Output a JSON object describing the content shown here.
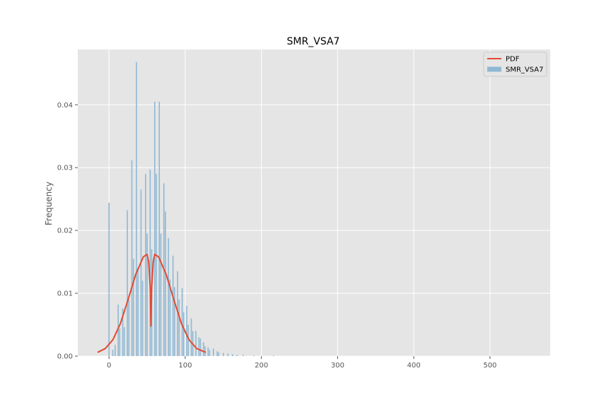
{
  "chart_data": {
    "type": "bar",
    "title": "SMR_VSA7",
    "xlabel": "",
    "ylabel": "Frequency",
    "xlim": [
      -41,
      579
    ],
    "ylim": [
      0,
      0.0488
    ],
    "xticks": [
      0,
      100,
      200,
      300,
      400,
      500
    ],
    "xtick_labels": [
      "0",
      "100",
      "200",
      "300",
      "400",
      "500"
    ],
    "yticks": [
      0.0,
      0.01,
      0.02,
      0.03,
      0.04
    ],
    "ytick_labels": [
      "0.00",
      "0.01",
      "0.02",
      "0.03",
      "0.04"
    ],
    "grid": true,
    "legend_position": "top-right",
    "colors": {
      "background": "#e5e5e5",
      "grid": "#ffffff",
      "histogram": "#8eb8d3",
      "pdf": "#e24a33"
    },
    "histogram": {
      "name": "SMR_VSA7",
      "spikes": [
        {
          "x": 0,
          "y": 0.0244
        },
        {
          "x": 5,
          "y": 0.001
        },
        {
          "x": 8,
          "y": 0.0018
        },
        {
          "x": 12,
          "y": 0.0082
        },
        {
          "x": 14,
          "y": 0.0044
        },
        {
          "x": 18,
          "y": 0.0076
        },
        {
          "x": 20,
          "y": 0.0046
        },
        {
          "x": 24,
          "y": 0.0232
        },
        {
          "x": 26,
          "y": 0.009
        },
        {
          "x": 30,
          "y": 0.0312
        },
        {
          "x": 32,
          "y": 0.0155
        },
        {
          "x": 36,
          "y": 0.0468
        },
        {
          "x": 38,
          "y": 0.014
        },
        {
          "x": 42,
          "y": 0.0265
        },
        {
          "x": 44,
          "y": 0.012
        },
        {
          "x": 48,
          "y": 0.029
        },
        {
          "x": 50,
          "y": 0.0195
        },
        {
          "x": 54,
          "y": 0.0297
        },
        {
          "x": 56,
          "y": 0.017
        },
        {
          "x": 60,
          "y": 0.0405
        },
        {
          "x": 62,
          "y": 0.029
        },
        {
          "x": 66,
          "y": 0.0405
        },
        {
          "x": 68,
          "y": 0.0195
        },
        {
          "x": 72,
          "y": 0.0275
        },
        {
          "x": 74,
          "y": 0.023
        },
        {
          "x": 78,
          "y": 0.0188
        },
        {
          "x": 80,
          "y": 0.0122
        },
        {
          "x": 84,
          "y": 0.016
        },
        {
          "x": 86,
          "y": 0.011
        },
        {
          "x": 90,
          "y": 0.0135
        },
        {
          "x": 92,
          "y": 0.009
        },
        {
          "x": 96,
          "y": 0.0108
        },
        {
          "x": 98,
          "y": 0.007
        },
        {
          "x": 102,
          "y": 0.008
        },
        {
          "x": 104,
          "y": 0.005
        },
        {
          "x": 108,
          "y": 0.006
        },
        {
          "x": 110,
          "y": 0.004
        },
        {
          "x": 114,
          "y": 0.004
        },
        {
          "x": 118,
          "y": 0.003
        },
        {
          "x": 120,
          "y": 0.0028
        },
        {
          "x": 124,
          "y": 0.0022
        },
        {
          "x": 126,
          "y": 0.0016
        },
        {
          "x": 130,
          "y": 0.0014
        },
        {
          "x": 132,
          "y": 0.001
        },
        {
          "x": 137,
          "y": 0.0012
        },
        {
          "x": 142,
          "y": 0.0008
        },
        {
          "x": 144,
          "y": 0.0006
        },
        {
          "x": 150,
          "y": 0.0005
        },
        {
          "x": 156,
          "y": 0.0004
        },
        {
          "x": 162,
          "y": 0.0003
        },
        {
          "x": 168,
          "y": 0.0002
        },
        {
          "x": 176,
          "y": 0.0002
        },
        {
          "x": 190,
          "y": 0.0001
        },
        {
          "x": 216,
          "y": 0.0001
        }
      ]
    },
    "series": [
      {
        "name": "PDF",
        "x": [
          -15,
          -5,
          5,
          15,
          25,
          35,
          45,
          50,
          52,
          54,
          55,
          56,
          58,
          60,
          65,
          75,
          85,
          95,
          105,
          115,
          127
        ],
        "y": [
          0.0006,
          0.0012,
          0.0026,
          0.0052,
          0.009,
          0.013,
          0.0158,
          0.0162,
          0.015,
          0.011,
          0.0048,
          0.011,
          0.015,
          0.0162,
          0.0158,
          0.013,
          0.009,
          0.0052,
          0.0026,
          0.0012,
          0.0006
        ]
      }
    ],
    "legend": [
      {
        "label": "PDF",
        "kind": "line",
        "color": "#e24a33"
      },
      {
        "label": "SMR_VSA7",
        "kind": "patch",
        "color": "#8eb8d3"
      }
    ]
  }
}
